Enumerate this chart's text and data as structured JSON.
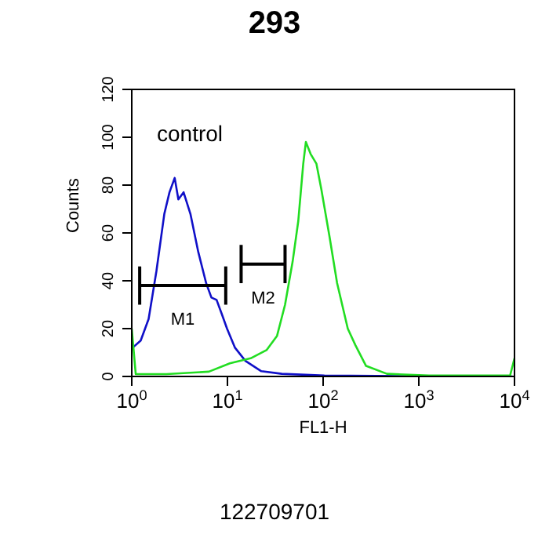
{
  "chart_data": {
    "type": "line",
    "title": "293",
    "xlabel": "FL1-H",
    "ylabel": "Counts",
    "log": "x",
    "xlim": [
      1,
      10000
    ],
    "xticks": [
      {
        "value": 1,
        "label": "10$^{0}$"
      },
      {
        "value": 10,
        "label": "10$^{1}$"
      },
      {
        "value": 100,
        "label": "10$^{2}$"
      },
      {
        "value": 1000,
        "label": "10$^{3}$"
      },
      {
        "value": 10000,
        "label": "10$^{4}$"
      }
    ],
    "ylim": [
      0,
      120
    ],
    "yticks": [
      0,
      20,
      40,
      60,
      80,
      100,
      120
    ],
    "marker": "none",
    "line_style": "solid",
    "series": [
      {
        "color": "#1010c8",
        "x": [
          1.02,
          1.24,
          1.5,
          1.81,
          2.19,
          2.48,
          2.81,
          3.07,
          3.48,
          4.1,
          4.96,
          5.99,
          6.8,
          7.7,
          8.75,
          9.9,
          12,
          15.4,
          22.6,
          37,
          103,
          362,
          1280,
          9500
        ],
        "values": [
          12,
          15,
          24,
          44,
          68,
          77,
          83,
          74,
          77,
          68,
          52,
          39,
          33,
          32,
          26,
          20,
          12,
          6.5,
          2.2,
          1.1,
          0.4,
          0.2,
          0,
          0
        ]
      },
      {
        "color": "#22dd22",
        "x": [
          1,
          1.1,
          2.3,
          6.4,
          10.6,
          17.5,
          25.6,
          33,
          40,
          48,
          55,
          62,
          66,
          74,
          85,
          96,
          116,
          140,
          181,
          218,
          281,
          464,
          1280,
          9000,
          10000
        ],
        "values": [
          20,
          1,
          1,
          2,
          5.5,
          7.6,
          11,
          17,
          30,
          48,
          65,
          89,
          98,
          93,
          89,
          78,
          59,
          39,
          20,
          13,
          4.4,
          1.1,
          0.4,
          0.4,
          7.6
        ]
      },
      {
        "name": "M1",
        "color": "#000000",
        "x": [
          1.21,
          9.6
        ],
        "values": [
          38,
          38
        ],
        "errors": [
          8,
          8
        ]
      },
      {
        "name": "M2",
        "color": "#000000",
        "x": [
          13.9,
          40
        ],
        "values": [
          47,
          47
        ],
        "errors": [
          8,
          8
        ]
      }
    ],
    "annotations": [
      "control",
      "122709701"
    ]
  }
}
